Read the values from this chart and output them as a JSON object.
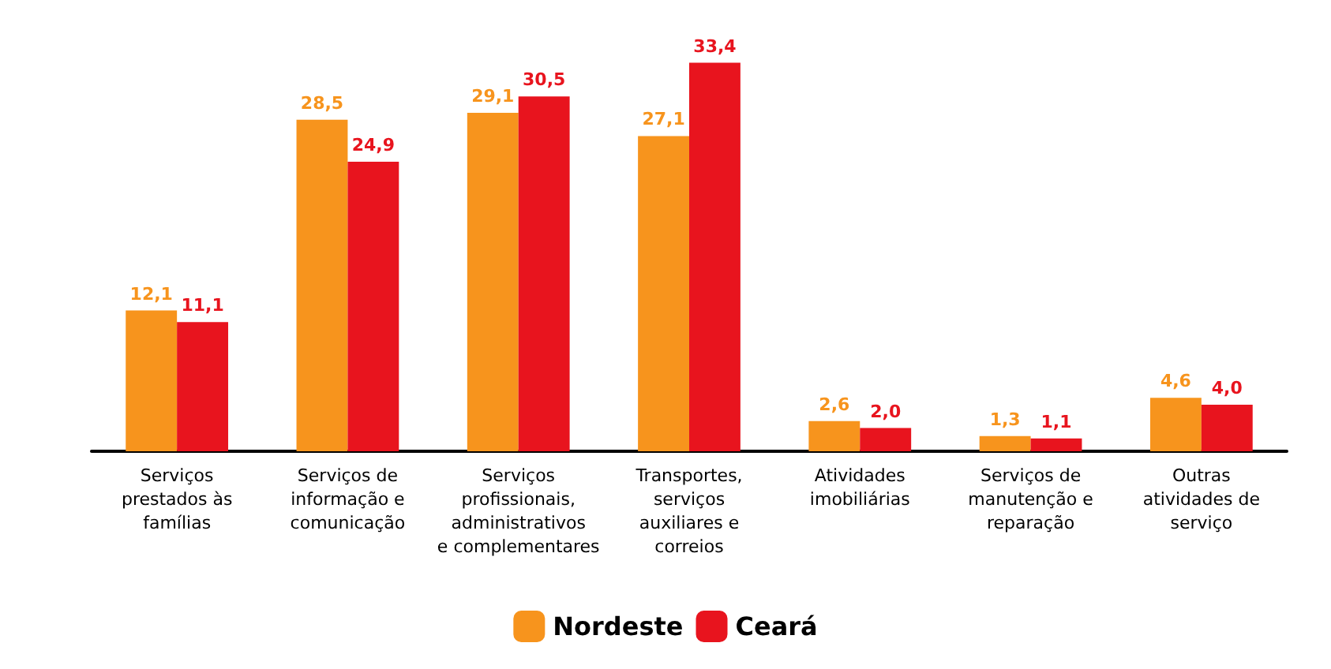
{
  "chart_data": {
    "type": "bar",
    "categories": [
      "Serviços prestados às famílias",
      "Serviços de informação e comunicação",
      "Serviços profissionais, administrativos e complementares",
      "Transportes, serviços auxiliares e correios",
      "Atividades imobiliárias",
      "Serviços de manutenção e reparação",
      "Outras atividades de serviço"
    ],
    "series": [
      {
        "name": "Nordeste",
        "color": "#f7941d",
        "values": [
          12.1,
          28.5,
          29.1,
          27.1,
          2.6,
          1.3,
          4.6
        ],
        "value_labels": [
          "12,1",
          "28,5",
          "29,1",
          "27,1",
          "2,6",
          "1,3",
          "4,6"
        ]
      },
      {
        "name": "Ceará",
        "color": "#e8141e",
        "values": [
          11.1,
          24.9,
          30.5,
          33.4,
          2.0,
          1.1,
          4.0
        ],
        "value_labels": [
          "11,1",
          "24,9",
          "30,5",
          "33,4",
          "2,0",
          "1,1",
          "4,0"
        ]
      }
    ],
    "legend": "bottom",
    "grid": false
  }
}
